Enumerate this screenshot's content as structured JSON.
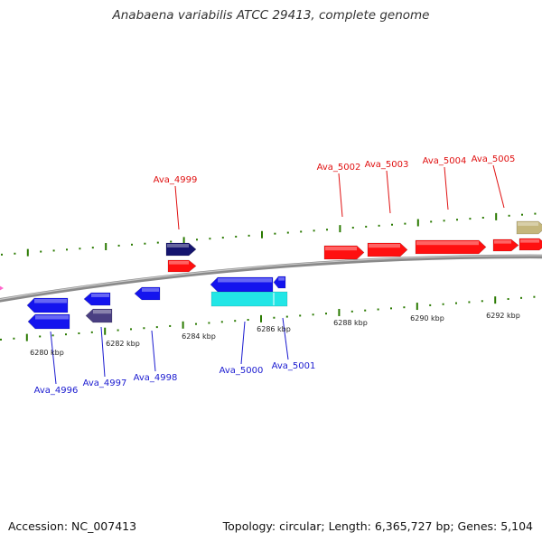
{
  "title": "Anabaena variabilis ATCC 29413, complete genome",
  "footer": {
    "accession": "Accession: NC_007413",
    "stats": "Topology: circular; Length: 6,365,727 bp; Genes: 5,104"
  },
  "coordinates": [
    "6280 kbp",
    "6282 kbp",
    "6284 kbp",
    "6286 kbp",
    "6288 kbp",
    "6290 kbp",
    "6292 kbp"
  ],
  "colors": {
    "forward_label": "#e01010",
    "reverse_label": "#1a1ad0",
    "forward_tick": "#2a7a00",
    "backbone": "#8a8a8a"
  },
  "genes_forward": [
    {
      "label": "Ava_4999",
      "color": "#14146e"
    },
    {
      "label": "",
      "color": "#ff1010"
    },
    {
      "label": "Ava_5002",
      "color": "#ff1010"
    },
    {
      "label": "Ava_5003",
      "color": "#ff1010"
    },
    {
      "label": "Ava_5004",
      "color": "#ff1010"
    },
    {
      "label": "Ava_5005",
      "color": "#ff1010"
    },
    {
      "label": "",
      "color": "#ff1010"
    },
    {
      "label": "",
      "color": "#c4b67c"
    }
  ],
  "genes_reverse": [
    {
      "label": "Ava_4996",
      "color": "#1414ee"
    },
    {
      "label": "",
      "color": "#1414ee"
    },
    {
      "label": "Ava_4997",
      "color": "#1414ee"
    },
    {
      "label": "",
      "color": "#4a3f82"
    },
    {
      "label": "Ava_4998",
      "color": "#1414ee"
    },
    {
      "label": "Ava_5000",
      "color": "#1414ee"
    },
    {
      "label": "",
      "color": "#22e6e6"
    },
    {
      "label": "Ava_5001",
      "color": "#1414ee"
    }
  ]
}
